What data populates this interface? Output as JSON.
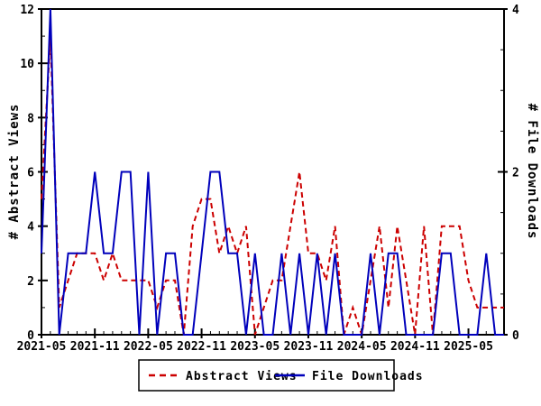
{
  "chart_data": {
    "type": "line",
    "x": [
      "2021-05",
      "2021-06",
      "2021-07",
      "2021-08",
      "2021-09",
      "2021-10",
      "2021-11",
      "2021-12",
      "2022-01",
      "2022-02",
      "2022-03",
      "2022-04",
      "2022-05",
      "2022-06",
      "2022-07",
      "2022-08",
      "2022-09",
      "2022-10",
      "2022-11",
      "2022-12",
      "2023-01",
      "2023-02",
      "2023-03",
      "2023-04",
      "2023-05",
      "2023-06",
      "2023-07",
      "2023-08",
      "2023-09",
      "2023-10",
      "2023-11",
      "2023-12",
      "2024-01",
      "2024-02",
      "2024-03",
      "2024-04",
      "2024-05",
      "2024-06",
      "2024-07",
      "2024-08",
      "2024-09",
      "2024-10",
      "2024-11",
      "2024-12",
      "2025-01",
      "2025-02",
      "2025-03",
      "2025-04",
      "2025-05",
      "2025-06",
      "2025-07",
      "2025-08",
      "2025-09"
    ],
    "series": [
      {
        "name": "Abstract Views",
        "axis": "left",
        "style": "dashed",
        "color": "#cc0000",
        "values": [
          5,
          11,
          1,
          2,
          3,
          3,
          3,
          2,
          3,
          2,
          2,
          2,
          2,
          1,
          2,
          2,
          0,
          4,
          5,
          5,
          3,
          4,
          3,
          4,
          0,
          1,
          2,
          2,
          4,
          6,
          3,
          3,
          2,
          4,
          0,
          1,
          0,
          2,
          4,
          1,
          4,
          2,
          0,
          4,
          0,
          4,
          4,
          4,
          2,
          1,
          1,
          1,
          1
        ]
      },
      {
        "name": "File Downloads",
        "axis": "right",
        "style": "solid",
        "color": "#0000bb",
        "values": [
          1,
          4,
          0,
          1,
          1,
          1,
          2,
          1,
          1,
          2,
          2,
          0,
          2,
          0,
          1,
          1,
          0,
          0,
          1,
          2,
          2,
          1,
          1,
          0,
          1,
          0,
          0,
          1,
          0,
          1,
          0,
          1,
          0,
          1,
          0,
          0,
          0,
          1,
          0,
          1,
          1,
          0,
          0,
          0,
          0,
          1,
          1,
          0,
          0,
          0,
          1,
          0,
          0
        ]
      }
    ],
    "left_axis": {
      "label": "# Abstract Views",
      "ticks": [
        0,
        2,
        4,
        6,
        8,
        10,
        12
      ],
      "range": [
        0,
        12
      ],
      "minor_step": 1
    },
    "right_axis": {
      "label": "# File Downloads",
      "ticks": [
        0,
        2,
        4
      ],
      "range": [
        0,
        4
      ],
      "minor_step": 0.5
    },
    "x_axis": {
      "tick_labels": [
        "2021-05",
        "2021-11",
        "2022-05",
        "2022-11",
        "2023-05",
        "2023-11",
        "2024-05",
        "2024-11",
        "2025-05"
      ],
      "tick_indices": [
        0,
        6,
        12,
        18,
        24,
        30,
        36,
        42,
        48
      ]
    },
    "grid": "off",
    "legend_position": "bottom-center",
    "frame_color": "#000000",
    "background_color": "#ffffff"
  }
}
